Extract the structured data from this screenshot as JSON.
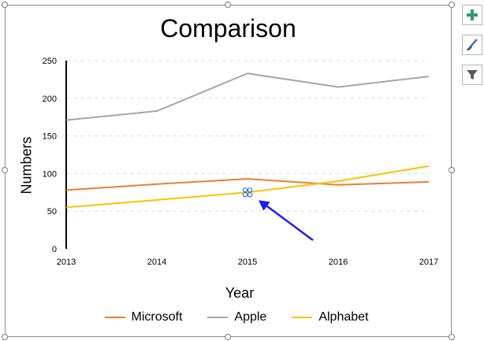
{
  "side_buttons": [
    {
      "name": "chart-elements-button",
      "icon": "plus-icon",
      "color": "#2f9c6a"
    },
    {
      "name": "chart-styles-button",
      "icon": "paintbrush-icon",
      "color": "#4472c4"
    },
    {
      "name": "chart-filters-button",
      "icon": "filter-icon",
      "color": "#595959"
    }
  ],
  "chart_data": {
    "type": "line",
    "title": "Comparison",
    "xlabel": "Year",
    "ylabel": "Numbers",
    "categories": [
      "2013",
      "2014",
      "2015",
      "2016",
      "2017"
    ],
    "ylim": [
      0,
      250
    ],
    "yticks": [
      0,
      50,
      100,
      150,
      200,
      250
    ],
    "grid": true,
    "legend_position": "bottom",
    "series": [
      {
        "name": "Microsoft",
        "color": "#ed7d31",
        "values": [
          78,
          86,
          93,
          85,
          89
        ]
      },
      {
        "name": "Apple",
        "color": "#a5a5a5",
        "values": [
          171,
          183,
          233,
          215,
          229
        ]
      },
      {
        "name": "Alphabet",
        "color": "#ffc000",
        "values": [
          55,
          65,
          75,
          90,
          110
        ]
      }
    ]
  },
  "annotation": {
    "arrow_color": "#1a1aff",
    "point_marker_color": "#2e75d6"
  }
}
